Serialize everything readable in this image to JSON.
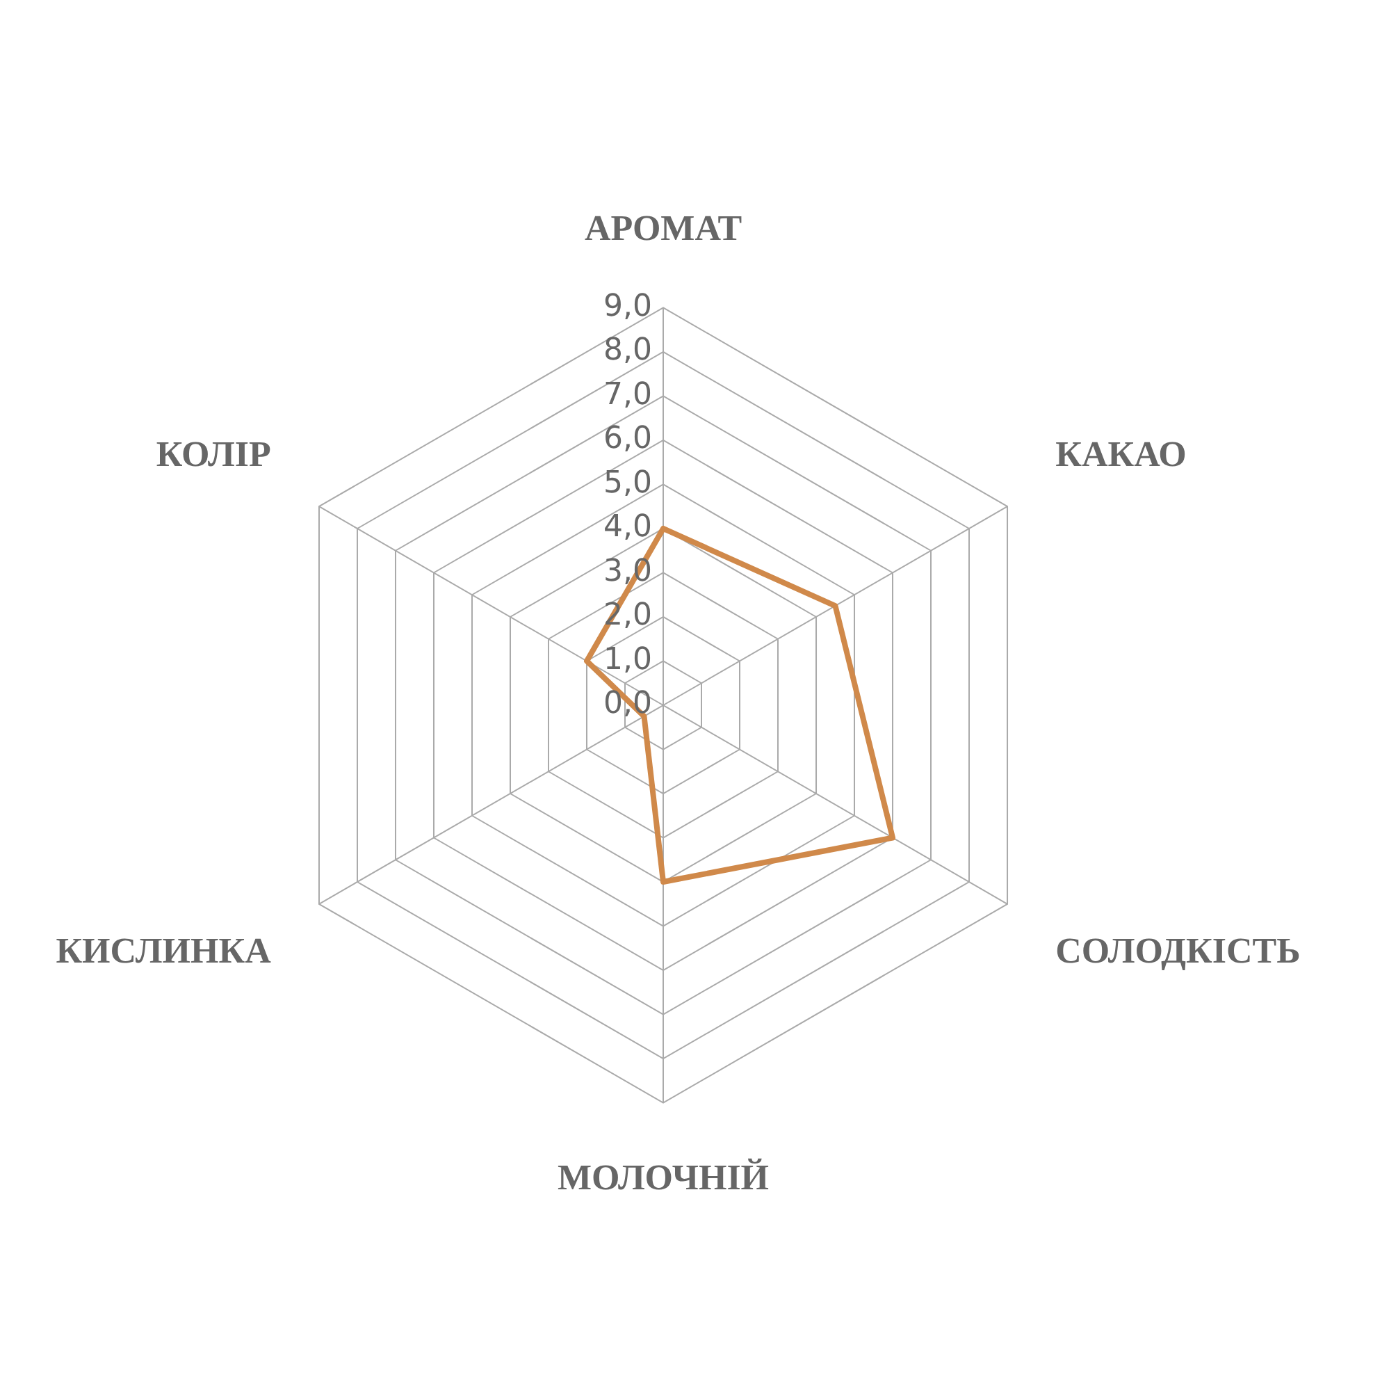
{
  "chart_data": {
    "type": "radar",
    "categories": [
      "АРОМАТ",
      "КАКАО",
      "СОЛОДКІСТЬ",
      "МОЛОЧНІЙ",
      "КИСЛИНКА",
      "КОЛІР"
    ],
    "series": [
      {
        "color": "#d0894a",
        "values": [
          4.0,
          4.5,
          6.0,
          4.0,
          0.5,
          2.0
        ]
      }
    ],
    "ylim": [
      0,
      9
    ],
    "yticks": [
      {
        "value": 0,
        "label": "0,0"
      },
      {
        "value": 1,
        "label": "1,0"
      },
      {
        "value": 2,
        "label": "2,0"
      },
      {
        "value": 3,
        "label": "3,0"
      },
      {
        "value": 4,
        "label": "4,0"
      },
      {
        "value": 5,
        "label": "5,0"
      },
      {
        "value": 6,
        "label": "6,0"
      },
      {
        "value": 7,
        "label": "7,0"
      },
      {
        "value": 8,
        "label": "8,0"
      },
      {
        "value": 9,
        "label": "9,0"
      }
    ],
    "grid": true,
    "legend": false,
    "marker": "none",
    "line_style": "solid"
  }
}
